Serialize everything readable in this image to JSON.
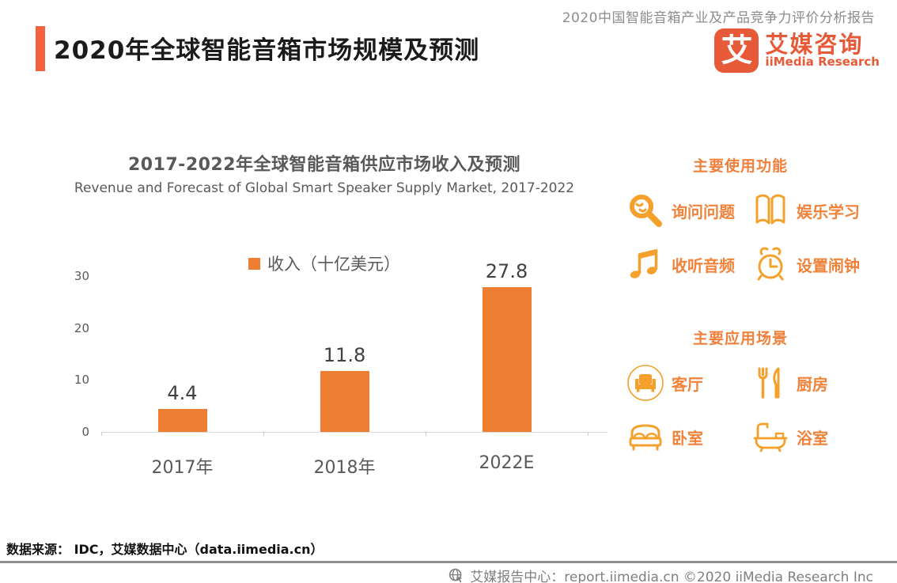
{
  "header": {
    "report_label": "2020中国智能音箱产业及产品竞争力评价分析报告",
    "title": "2020年全球智能音箱市场规模及预测",
    "logo": {
      "glyph": "艾",
      "name_cn": "艾媒咨询",
      "name_en": "iiMedia Research"
    }
  },
  "chart_data": {
    "type": "bar",
    "title": "2017-2022年全球智能音箱供应市场收入及预测",
    "subtitle": "Revenue and Forecast of Global Smart Speaker Supply Market, 2017-2022",
    "legend": "收入（十亿美元）",
    "series_name": "收入（十亿美元）",
    "categories": [
      "2017年",
      "2018年",
      "2022E"
    ],
    "values": [
      4.4,
      11.8,
      27.8
    ],
    "xlabel": "",
    "ylabel": "",
    "ylim": [
      0,
      30
    ],
    "yticks": [
      0,
      10,
      20,
      30
    ],
    "grid": false,
    "legend_position": "top-center",
    "bar_color": "#ED7D31"
  },
  "features": {
    "title": "主要使用功能",
    "items": [
      {
        "icon": "magnifier-face-icon",
        "label": "询问问题"
      },
      {
        "icon": "open-book-icon",
        "label": "娱乐学习"
      },
      {
        "icon": "music-notes-icon",
        "label": "收听音频"
      },
      {
        "icon": "alarm-clock-icon",
        "label": "设置闹钟"
      }
    ]
  },
  "scenes": {
    "title": "主要应用场景",
    "items": [
      {
        "icon": "sofa-icon",
        "label": "客厅"
      },
      {
        "icon": "cutlery-icon",
        "label": "厨房"
      },
      {
        "icon": "bed-icon",
        "label": "卧室"
      },
      {
        "icon": "bathtub-icon",
        "label": "浴室"
      }
    ]
  },
  "source_note": "数据来源： IDC，艾媒数据中心（data.iimedia.cn）",
  "footer": {
    "text": "艾媒报告中心：report.iimedia.cn  ©2020  iiMedia Research Inc"
  },
  "colors": {
    "bar": "#ED7D31",
    "accent_bar": "#F4613C",
    "brand": "#E75A38",
    "icon_orange": "#F5A02B",
    "label_orange": "#F0823A",
    "text_gray": "#595959",
    "footer_gray": "#7F7F7F"
  }
}
